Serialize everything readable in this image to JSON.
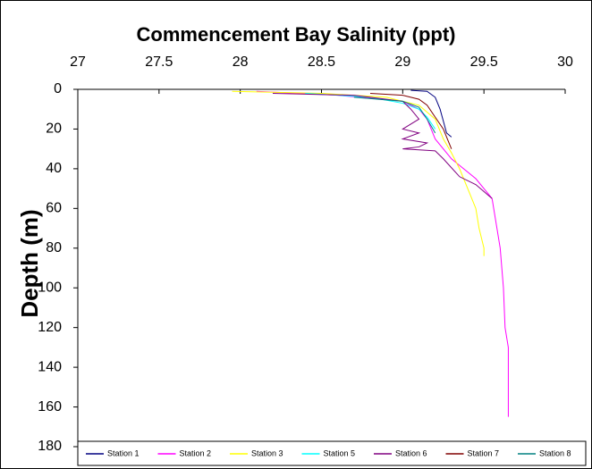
{
  "chart_data": {
    "type": "line",
    "title": "Commencement Bay Salinity (ppt)",
    "y_label": "Depth (m)",
    "xlim": [
      27,
      30
    ],
    "xticks": [
      27,
      27.5,
      28,
      28.5,
      29,
      29.5,
      30
    ],
    "ylim": [
      0,
      180
    ],
    "yticks": [
      0,
      20,
      40,
      60,
      80,
      100,
      120,
      140,
      160,
      180
    ],
    "y_inverted": true,
    "x_axis_position": "top",
    "grid": false,
    "legend": "bottom",
    "series": [
      {
        "name": "Station 1",
        "color": "#000080",
        "x": [
          29.05,
          29.15,
          29.2,
          29.23,
          29.25,
          29.27,
          29.3
        ],
        "values": [
          0.5,
          1,
          4,
          10,
          16,
          22,
          24
        ]
      },
      {
        "name": "Station 2",
        "color": "#ff00ff",
        "x": [
          28.1,
          28.6,
          29.0,
          29.1,
          29.15,
          29.2,
          29.3,
          29.45,
          29.55,
          29.58,
          29.6,
          29.62,
          29.63,
          29.65,
          29.65,
          29.65
        ],
        "values": [
          1,
          3,
          6,
          10,
          15,
          25,
          35,
          45,
          55,
          70,
          80,
          100,
          120,
          130,
          150,
          165
        ]
      },
      {
        "name": "Station 3",
        "color": "#ffff00",
        "x": [
          27.95,
          28.5,
          28.9,
          29.1,
          29.2,
          29.25,
          29.3,
          29.35,
          29.4,
          29.45,
          29.47,
          29.5,
          29.5
        ],
        "values": [
          1,
          2,
          4,
          8,
          15,
          25,
          32,
          40,
          50,
          60,
          70,
          80,
          84
        ]
      },
      {
        "name": "Station 5",
        "color": "#00ffff",
        "x": [
          28.4,
          28.8,
          29.0,
          29.1,
          29.15,
          29.2
        ],
        "values": [
          2,
          4,
          7,
          10,
          14,
          20
        ]
      },
      {
        "name": "Station 6",
        "color": "#800080",
        "x": [
          28.2,
          28.7,
          29.0,
          29.05,
          29.1,
          29.0,
          29.1,
          29.0,
          29.15,
          29.1,
          29.0,
          29.2,
          29.25,
          29.35,
          29.45,
          29.55
        ],
        "values": [
          2,
          3,
          6,
          10,
          15,
          20,
          22,
          25,
          27,
          29,
          30,
          31,
          35,
          44,
          48,
          55
        ]
      },
      {
        "name": "Station 7",
        "color": "#800000",
        "x": [
          28.8,
          29.0,
          29.1,
          29.15,
          29.2,
          29.25,
          29.3
        ],
        "values": [
          2,
          3,
          5,
          8,
          14,
          20,
          30
        ]
      },
      {
        "name": "Station 8",
        "color": "#008080",
        "x": [
          28.7,
          29.0,
          29.1,
          29.15,
          29.2
        ],
        "values": [
          4,
          6,
          9,
          15,
          22
        ]
      }
    ]
  }
}
